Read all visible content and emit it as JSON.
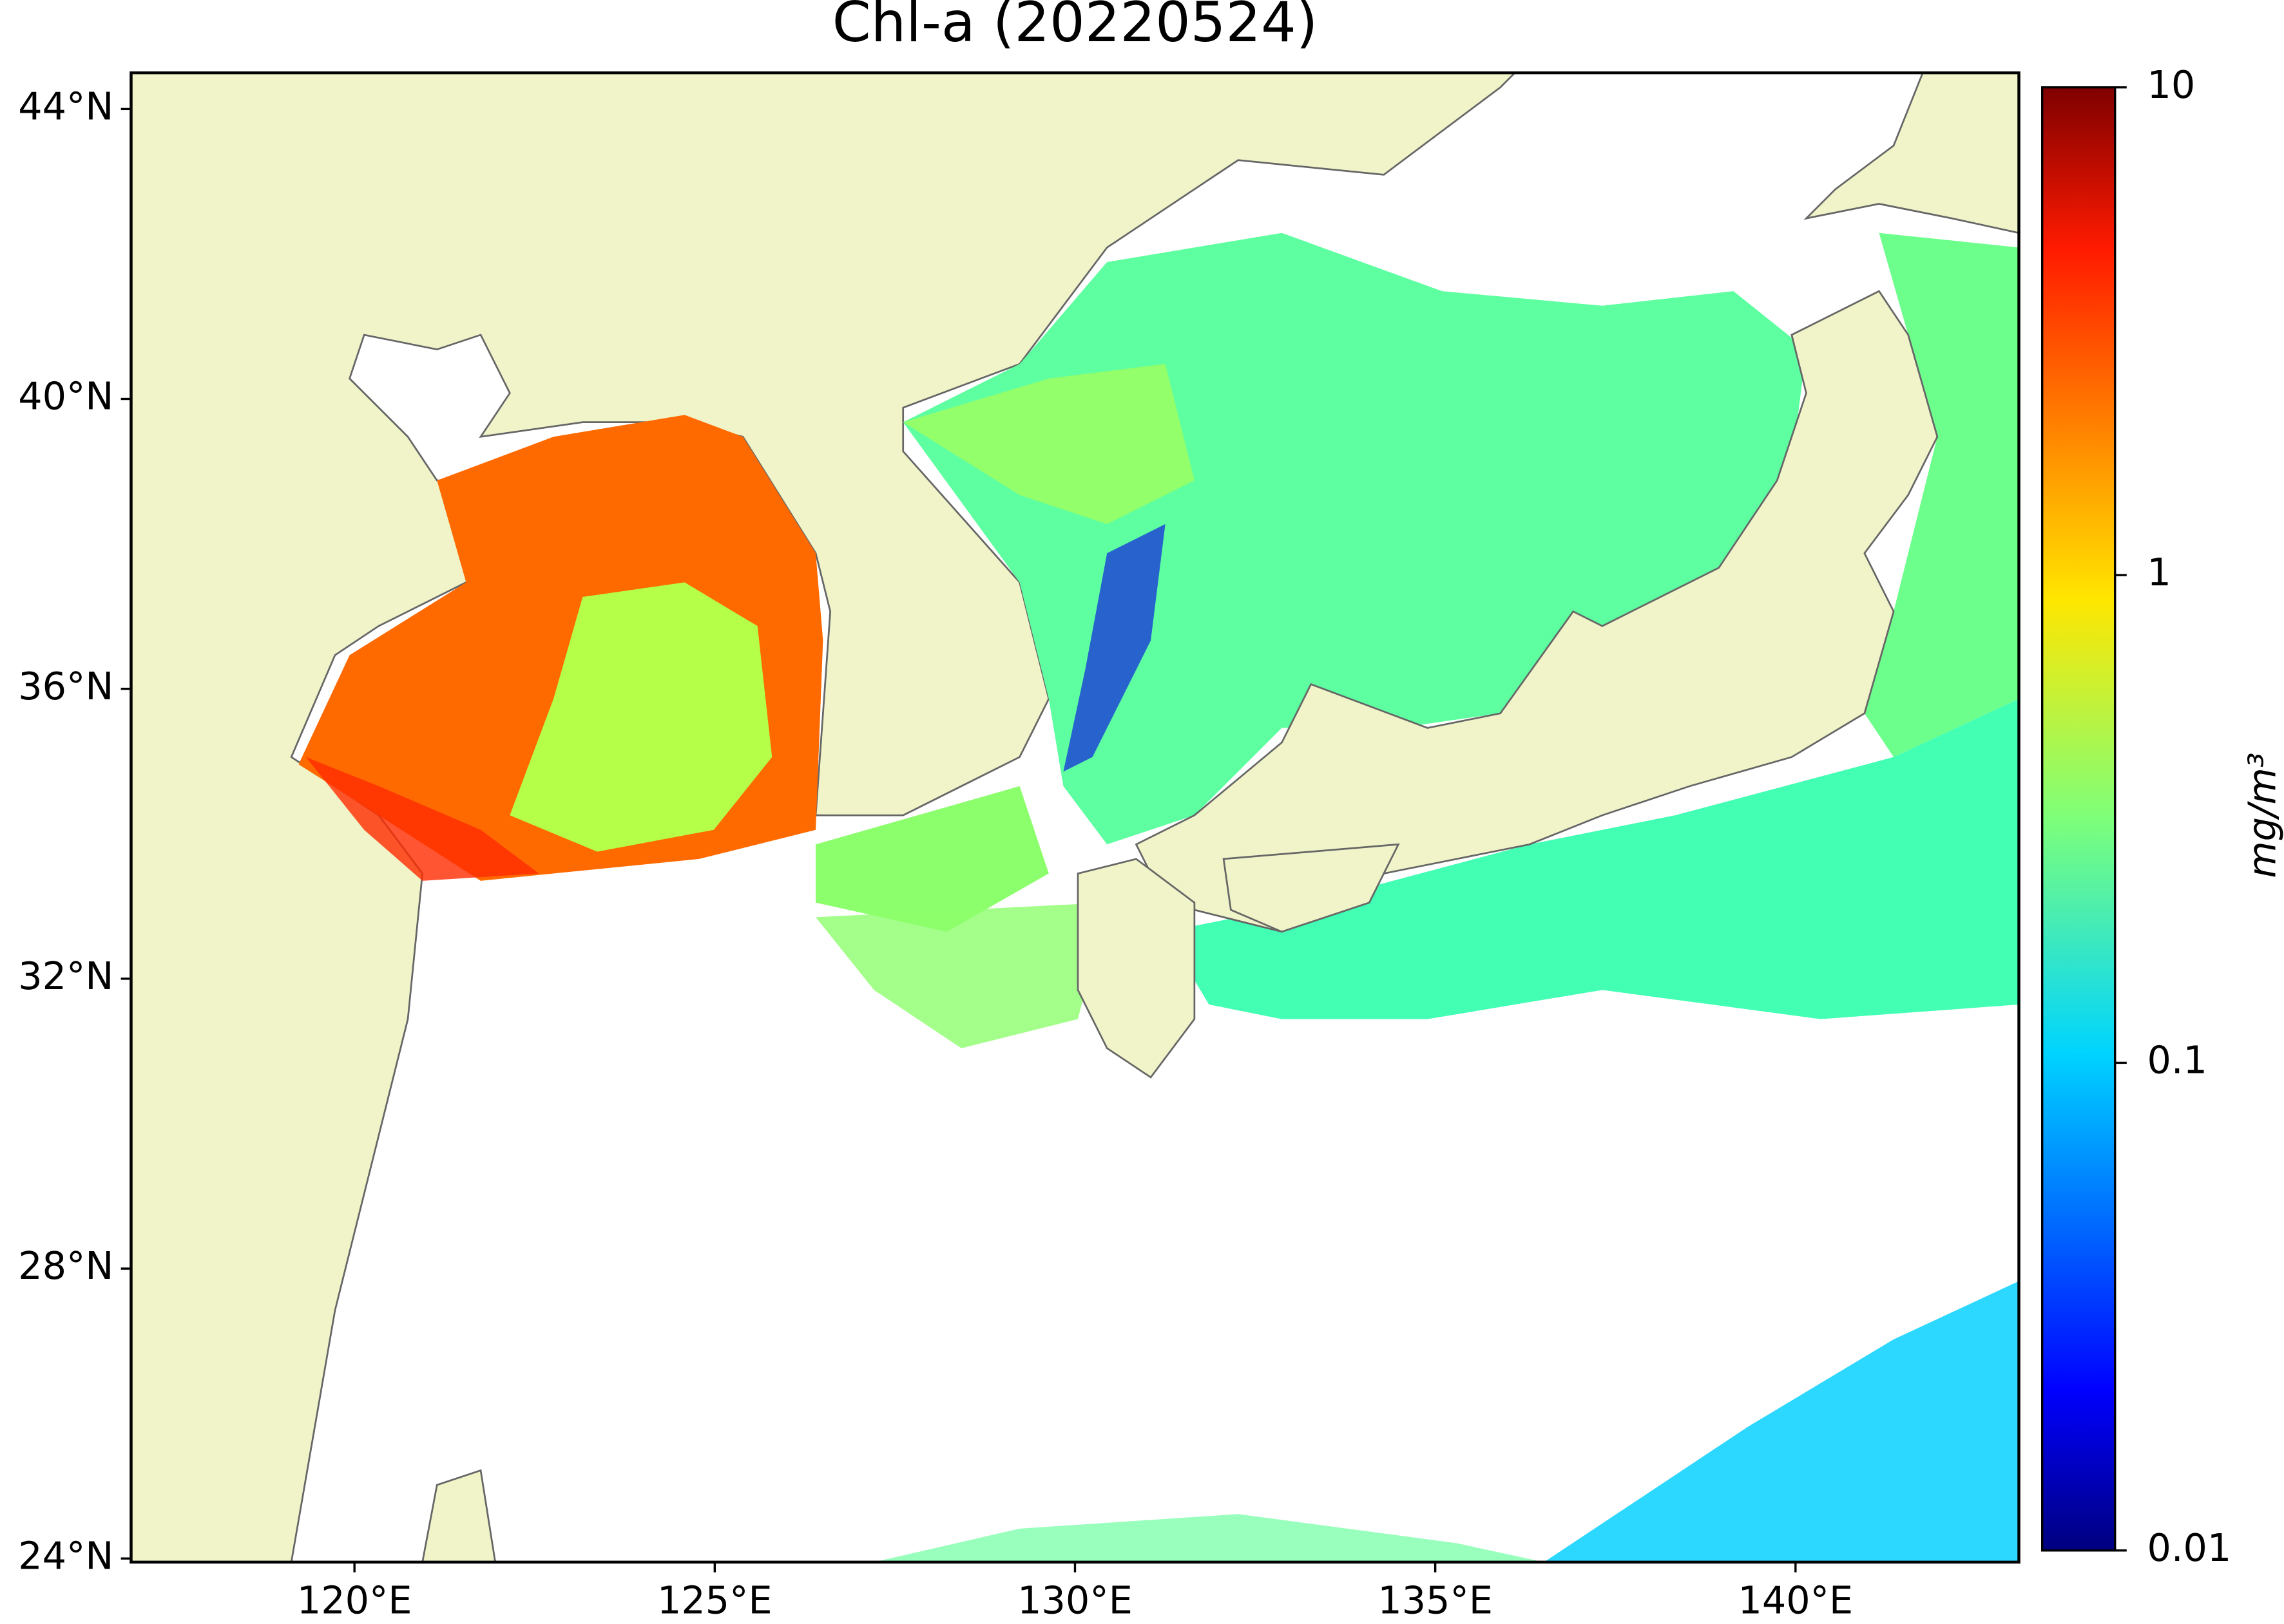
{
  "chart_data": {
    "type": "map",
    "title": "Chl-a (20220524)",
    "xlim": [
      116.9,
      143.1
    ],
    "ylim": [
      23.95,
      44.5
    ],
    "xticks": [
      {
        "value": 120,
        "label": "120°E"
      },
      {
        "value": 125,
        "label": "125°E"
      },
      {
        "value": 130,
        "label": "130°E"
      },
      {
        "value": 135,
        "label": "135°E"
      },
      {
        "value": 140,
        "label": "140°E"
      }
    ],
    "yticks": [
      {
        "value": 24,
        "label": "24°N"
      },
      {
        "value": 28,
        "label": "28°N"
      },
      {
        "value": 32,
        "label": "32°N"
      },
      {
        "value": 36,
        "label": "36°N"
      },
      {
        "value": 40,
        "label": "40°N"
      },
      {
        "value": 44,
        "label": "44°N"
      }
    ],
    "colorbar": {
      "label": "mg/m³",
      "log": true,
      "clim": [
        0.01,
        10
      ],
      "ticks": [
        0.01,
        0.1,
        1,
        10
      ],
      "colormap": "jet"
    }
  }
}
